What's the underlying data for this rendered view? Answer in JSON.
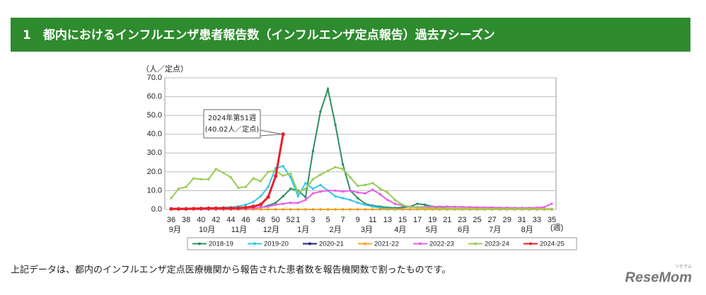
{
  "header": {
    "title": "1　都内におけるインフルエンザ患者報告数（インフルエンザ定点報告）過去7シーズン"
  },
  "chart_data": {
    "type": "line",
    "y_label": "（人／定点）",
    "x_label": "(週)",
    "categories": [
      "36",
      null,
      "38",
      null,
      "40",
      null,
      "42",
      null,
      "44",
      null,
      "46",
      null,
      "48",
      null,
      "50",
      null,
      "52",
      "1",
      null,
      "3",
      null,
      "5",
      null,
      "7",
      null,
      "9",
      null,
      "11",
      null,
      "13",
      null,
      "15",
      null,
      "17",
      null,
      "19",
      null,
      "21",
      null,
      "23",
      null,
      "25",
      null,
      "27",
      null,
      "29",
      null,
      "31",
      null,
      "33",
      null,
      "35"
    ],
    "month_labels": [
      "9月",
      "10月",
      "11月",
      "12月",
      "1月",
      "2月",
      "3月",
      "4月",
      "5月",
      "6月",
      "7月",
      "8月"
    ],
    "ylim": [
      0,
      70
    ],
    "yticks": [
      {
        "value": 0,
        "label": "0.0"
      },
      {
        "value": 10,
        "label": "10.0"
      },
      {
        "value": 20,
        "label": "20.0"
      },
      {
        "value": 30,
        "label": "30.0"
      },
      {
        "value": 40,
        "label": "40.0"
      },
      {
        "value": 50,
        "label": "50.0"
      },
      {
        "value": 60,
        "label": "60.0"
      },
      {
        "value": 70,
        "label": "70.0"
      }
    ],
    "grid": true,
    "series": [
      {
        "name": "2018-19",
        "color": "#2f8f5f",
        "values": [
          0.2,
          0.2,
          0.2,
          0.2,
          0.2,
          0.2,
          0.3,
          0.3,
          0.3,
          0.4,
          0.5,
          0.7,
          1.0,
          2.0,
          3.5,
          7.0,
          11.0,
          10.0,
          6.5,
          31.0,
          52.0,
          64.0,
          45.0,
          24.0,
          10.0,
          6.0,
          3.0,
          2.0,
          1.5,
          1.0,
          0.8,
          1.0,
          1.5,
          3.0,
          2.5,
          1.5,
          0.8,
          0.6,
          0.5,
          0.4,
          0.4,
          0.3,
          0.3,
          0.3,
          0.2,
          0.2,
          0.2,
          0.2,
          0.2,
          0.2,
          0.2,
          0.2
        ]
      },
      {
        "name": "2019-20",
        "color": "#33c6e8",
        "values": [
          0.5,
          0.5,
          0.6,
          0.6,
          0.7,
          0.8,
          0.9,
          1.0,
          1.2,
          1.6,
          2.5,
          4.0,
          7.0,
          12.0,
          22.0,
          23.0,
          17.0,
          7.0,
          14.0,
          11.0,
          13.0,
          10.0,
          7.0,
          6.0,
          5.0,
          3.5,
          2.5,
          1.5,
          0.8,
          0.5,
          0.3,
          0.2,
          0.1,
          0.1,
          0.1,
          0.1,
          0.1,
          0.1,
          0.1,
          0.1,
          0.1,
          0.1,
          0.1,
          0.1,
          0.1,
          0.1,
          0.1,
          0.1,
          0.1,
          0.1,
          0.1,
          0.1
        ]
      },
      {
        "name": "2020-21",
        "color": "#1a237e",
        "values": [
          0,
          0,
          0,
          0,
          0,
          0,
          0,
          0,
          0,
          0,
          0,
          0,
          0,
          0,
          0,
          0,
          0,
          0,
          0,
          0,
          0,
          0,
          0,
          0,
          0,
          0,
          0,
          0,
          0,
          0,
          0,
          0,
          0,
          0,
          0,
          0,
          0,
          0,
          0,
          0,
          0,
          0,
          0,
          0,
          0,
          0,
          0,
          0,
          0,
          0,
          0,
          0
        ]
      },
      {
        "name": "2021-22",
        "color": "#f5a623",
        "values": [
          0,
          0,
          0,
          0,
          0,
          0,
          0,
          0,
          0,
          0,
          0,
          0,
          0,
          0,
          0,
          0,
          0,
          0,
          0,
          0,
          0,
          0,
          0,
          0,
          0,
          0,
          0,
          0,
          0,
          0,
          0,
          0,
          0,
          0,
          0,
          0,
          0,
          0,
          0,
          0,
          0,
          0,
          0,
          0,
          0,
          0,
          0,
          0,
          0,
          0,
          0,
          0
        ]
      },
      {
        "name": "2022-23",
        "color": "#e85de8",
        "values": [
          0.1,
          0.1,
          0.1,
          0.1,
          0.1,
          0.1,
          0.2,
          0.2,
          0.2,
          0.3,
          0.4,
          0.6,
          1.0,
          1.5,
          2.5,
          3.0,
          3.5,
          3.5,
          5.0,
          8.5,
          9.5,
          10.0,
          10.0,
          9.5,
          10.0,
          9.0,
          8.5,
          10.5,
          8.0,
          5.0,
          3.0,
          2.0,
          1.5,
          1.2,
          1.3,
          1.5,
          1.5,
          1.5,
          1.4,
          1.3,
          1.2,
          1.1,
          1.0,
          1.0,
          0.9,
          0.9,
          0.8,
          0.8,
          0.8,
          0.9,
          1.2,
          3.0
        ]
      },
      {
        "name": "2023-24",
        "color": "#99cc55",
        "values": [
          6.0,
          11.0,
          12.0,
          16.5,
          16.0,
          16.0,
          21.5,
          19.5,
          17.0,
          11.5,
          12.0,
          16.5,
          15.0,
          20.0,
          20.5,
          18.0,
          19.0,
          9.0,
          11.0,
          16.0,
          18.5,
          20.5,
          22.5,
          21.5,
          17.0,
          12.5,
          13.0,
          14.0,
          11.0,
          9.0,
          5.0,
          2.5,
          1.2,
          1.0,
          0.8,
          0.7,
          0.6,
          0.5,
          0.5,
          0.4,
          0.4,
          0.4,
          0.3,
          0.3,
          0.3,
          0.3,
          0.3,
          0.3,
          0.3,
          0.3,
          0.3,
          0.3
        ]
      },
      {
        "name": "2024-25",
        "color": "#e8202a",
        "values": [
          0.3,
          0.3,
          0.3,
          0.4,
          0.5,
          0.6,
          0.6,
          0.6,
          0.6,
          0.7,
          1.0,
          1.6,
          2.6,
          6.6,
          17.7,
          40.02,
          null,
          null,
          null,
          null,
          null,
          null,
          null,
          null,
          null,
          null,
          null,
          null,
          null,
          null,
          null,
          null,
          null,
          null,
          null,
          null,
          null,
          null,
          null,
          null,
          null,
          null,
          null,
          null,
          null,
          null,
          null,
          null,
          null,
          null,
          null,
          null
        ]
      }
    ],
    "annotation": {
      "lines": [
        "2024年第51週",
        "(40.02人／定点)"
      ]
    }
  },
  "footnote": "上記データは、都内のインフルエンザ定点医療機関から報告された患者数を報告機関数で割ったものです。",
  "logo": {
    "text": "ReseMom",
    "kana": "リセマム"
  }
}
